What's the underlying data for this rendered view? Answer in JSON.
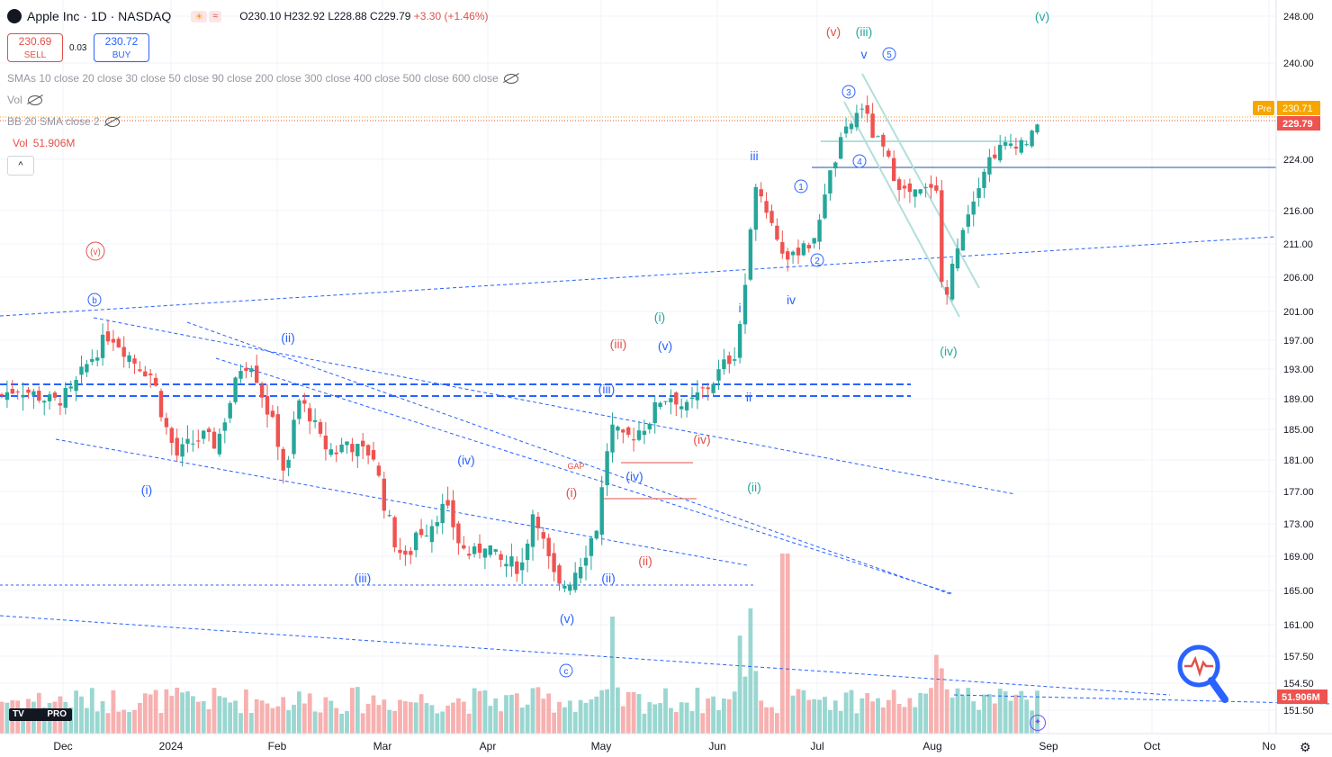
{
  "header": {
    "logo_icon": "apple-icon",
    "symbol": "Apple Inc · 1D · NASDAQ",
    "chip1": "☀",
    "chip2": "≈",
    "open": "O230.10",
    "high": "H232.92",
    "low": "L228.88",
    "close": "C229.79",
    "change": "+3.30 (+1.46%)"
  },
  "trade": {
    "sell_price": "230.69",
    "sell_label": "SELL",
    "spread": "0.03",
    "buy_price": "230.72",
    "buy_label": "BUY"
  },
  "indicators": {
    "smas": "SMAs 10 close 20 close 30 close 50 close 90 close 200 close 300 close 400 close 500 close 600 close",
    "vol_hidden": "Vol",
    "bb": "BB 20 SMA close 2",
    "vol_label": "Vol",
    "vol_value": "51.906M"
  },
  "brand": {
    "logo_text": "PRO"
  },
  "colors": {
    "up": "#26a69a",
    "down": "#ef5350",
    "up_vol": "#8fd3cc",
    "down_vol": "#f5a9a7",
    "trend": "#2962ff"
  },
  "chart_data": {
    "type": "candlestick",
    "title": "Apple Inc · 1D · NASDAQ",
    "xlabel": "",
    "ylabel": "",
    "ylim": [
      149.5,
      249.5
    ],
    "x_ticks": [
      "Dec",
      "2024",
      "Feb",
      "Mar",
      "Apr",
      "May",
      "Jun",
      "Jul",
      "Aug",
      "Sep",
      "Oct",
      "No"
    ],
    "y_ticks": [
      "248.00",
      "240.00",
      "224.00",
      "216.00",
      "211.00",
      "206.00",
      "201.00",
      "197.00",
      "193.00",
      "189.00",
      "185.00",
      "181.00",
      "177.00",
      "173.00",
      "169.00",
      "165.00",
      "161.00",
      "157.50",
      "154.50",
      "151.50"
    ],
    "price_labels": [
      {
        "label": "Pre",
        "value": "230.71"
      },
      {
        "label": "",
        "value": "229.79"
      },
      {
        "label": "",
        "value": "51.906M"
      }
    ],
    "grid": true,
    "close_anchors": [
      [
        1,
        189.5
      ],
      [
        20,
        190.5
      ],
      [
        40,
        189.5
      ],
      [
        60,
        188.5
      ],
      [
        80,
        190
      ],
      [
        96,
        193.5
      ],
      [
        110,
        196
      ],
      [
        122,
        198
      ],
      [
        136,
        196
      ],
      [
        150,
        194
      ],
      [
        170,
        192
      ],
      [
        182,
        186
      ],
      [
        196,
        181.5
      ],
      [
        210,
        183
      ],
      [
        226,
        184
      ],
      [
        240,
        183
      ],
      [
        254,
        188
      ],
      [
        268,
        193.5
      ],
      [
        280,
        194
      ],
      [
        294,
        188.5
      ],
      [
        308,
        184
      ],
      [
        318,
        178
      ],
      [
        330,
        189
      ],
      [
        344,
        187
      ],
      [
        358,
        183
      ],
      [
        372,
        182
      ],
      [
        386,
        183.5
      ],
      [
        400,
        182
      ],
      [
        414,
        182
      ],
      [
        428,
        175
      ],
      [
        438,
        171
      ],
      [
        452,
        168
      ],
      [
        462,
        172
      ],
      [
        476,
        172.5
      ],
      [
        490,
        175
      ],
      [
        500,
        174
      ],
      [
        512,
        170
      ],
      [
        526,
        169
      ],
      [
        540,
        171
      ],
      [
        552,
        168.5
      ],
      [
        566,
        168
      ],
      [
        580,
        168
      ],
      [
        594,
        175.5
      ],
      [
        606,
        169.5
      ],
      [
        620,
        165
      ],
      [
        634,
        166.5
      ],
      [
        648,
        169
      ],
      [
        664,
        173
      ],
      [
        678,
        185.5
      ],
      [
        692,
        183.5
      ],
      [
        706,
        184.5
      ],
      [
        720,
        186
      ],
      [
        734,
        189
      ],
      [
        748,
        189.5
      ],
      [
        762,
        187.5
      ],
      [
        776,
        189.5
      ],
      [
        790,
        191
      ],
      [
        804,
        193.5
      ],
      [
        818,
        195.5
      ],
      [
        830,
        207
      ],
      [
        840,
        221
      ],
      [
        852,
        216
      ],
      [
        866,
        211
      ],
      [
        878,
        208
      ],
      [
        892,
        211.5
      ],
      [
        904,
        210.5
      ],
      [
        916,
        219
      ],
      [
        926,
        223
      ],
      [
        936,
        227.5
      ],
      [
        946,
        230
      ],
      [
        958,
        233
      ],
      [
        970,
        228
      ],
      [
        980,
        226
      ],
      [
        992,
        222
      ],
      [
        1004,
        219
      ],
      [
        1016,
        218.5
      ],
      [
        1028,
        219
      ],
      [
        1040,
        221
      ],
      [
        1048,
        201
      ],
      [
        1056,
        206
      ],
      [
        1066,
        212.5
      ],
      [
        1076,
        216
      ],
      [
        1086,
        220
      ],
      [
        1096,
        223.5
      ],
      [
        1108,
        225.5
      ],
      [
        1120,
        226.5
      ],
      [
        1132,
        227
      ],
      [
        1144,
        227
      ],
      [
        1154,
        229.79
      ]
    ],
    "volume_scale": {
      "label": "Vol",
      "last": "51.906M"
    }
  },
  "annotations": [
    {
      "t": "(v)",
      "x": 106,
      "y": 279,
      "c": "#e2514a",
      "circle": true
    },
    {
      "t": "b",
      "x": 105,
      "y": 333,
      "c": "#2962ff",
      "circle": true
    },
    {
      "t": "(ii)",
      "x": 320,
      "y": 376,
      "c": "#2962ff"
    },
    {
      "t": "(i)",
      "x": 163,
      "y": 545,
      "c": "#2962ff"
    },
    {
      "t": "(iv)",
      "x": 518,
      "y": 512,
      "c": "#2962ff"
    },
    {
      "t": "(iii)",
      "x": 403,
      "y": 643,
      "c": "#2962ff"
    },
    {
      "t": "(i)",
      "x": 635,
      "y": 548,
      "c": "#e2514a"
    },
    {
      "t": "(ii)",
      "x": 717,
      "y": 624,
      "c": "#e2514a"
    },
    {
      "t": "(ii)",
      "x": 676,
      "y": 643,
      "c": "#2962ff"
    },
    {
      "t": "(v)",
      "x": 630,
      "y": 688,
      "c": "#2962ff"
    },
    {
      "t": "c",
      "x": 629,
      "y": 745,
      "c": "#2962ff",
      "circle": true
    },
    {
      "t": "(iii)",
      "x": 687,
      "y": 383,
      "c": "#e2514a"
    },
    {
      "t": "(i)",
      "x": 733,
      "y": 353,
      "c": "#26a69a"
    },
    {
      "t": "(v)",
      "x": 739,
      "y": 385,
      "c": "#2962ff"
    },
    {
      "t": "(iii)",
      "x": 674,
      "y": 433,
      "c": "#2962ff"
    },
    {
      "t": "(iv)",
      "x": 780,
      "y": 489,
      "c": "#e2514a"
    },
    {
      "t": "(iv)",
      "x": 705,
      "y": 530,
      "c": "#2962ff"
    },
    {
      "t": "GAP",
      "x": 640,
      "y": 517,
      "c": "#e2514a",
      "small": true
    },
    {
      "t": "(ii)",
      "x": 838,
      "y": 542,
      "c": "#26a69a"
    },
    {
      "t": "ii",
      "x": 832,
      "y": 442,
      "c": "#2962ff"
    },
    {
      "t": "i",
      "x": 822,
      "y": 343,
      "c": "#2962ff"
    },
    {
      "t": "iv",
      "x": 879,
      "y": 334,
      "c": "#2962ff"
    },
    {
      "t": "iii",
      "x": 838,
      "y": 174,
      "c": "#2962ff"
    },
    {
      "t": "1",
      "x": 890,
      "y": 207,
      "c": "#2962ff",
      "circle": true
    },
    {
      "t": "2",
      "x": 908,
      "y": 289,
      "c": "#2962ff",
      "circle": true
    },
    {
      "t": "3",
      "x": 943,
      "y": 102,
      "c": "#2962ff",
      "circle": true
    },
    {
      "t": "4",
      "x": 955,
      "y": 179,
      "c": "#2962ff",
      "circle": true
    },
    {
      "t": "5",
      "x": 988,
      "y": 60,
      "c": "#2962ff",
      "circle": true
    },
    {
      "t": "v",
      "x": 960,
      "y": 61,
      "c": "#2962ff"
    },
    {
      "t": "(v)",
      "x": 926,
      "y": 36,
      "c": "#e2514a"
    },
    {
      "t": "(iii)",
      "x": 960,
      "y": 36,
      "c": "#26a69a"
    },
    {
      "t": "(iv)",
      "x": 1054,
      "y": 391,
      "c": "#26a69a"
    },
    {
      "t": "(v)",
      "x": 1158,
      "y": 19,
      "c": "#26a69a"
    }
  ]
}
